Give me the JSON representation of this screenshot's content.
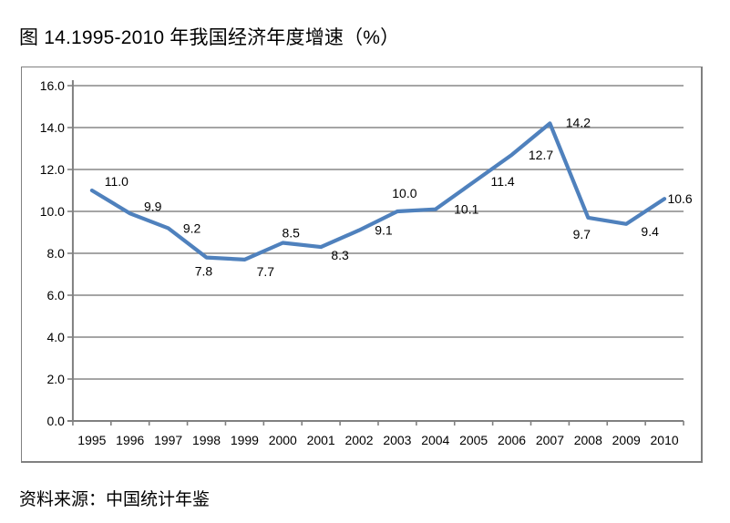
{
  "page": {
    "title": "图 14.1995-2010 年我国经济年度增速（%）",
    "source_note": "资料来源：中国统计年鉴"
  },
  "chart_data": {
    "type": "line",
    "title": "图 14.1995-2010 年我国经济年度增速（%）",
    "categories": [
      "1995",
      "1996",
      "1997",
      "1998",
      "1999",
      "2000",
      "2001",
      "2002",
      "2003",
      "2004",
      "2005",
      "2006",
      "2007",
      "2008",
      "2009",
      "2010"
    ],
    "values": [
      11.0,
      9.9,
      9.2,
      7.8,
      7.7,
      8.5,
      8.3,
      9.1,
      10.0,
      10.1,
      11.4,
      12.7,
      14.2,
      9.7,
      9.4,
      10.6
    ],
    "data_labels": [
      "11.0",
      "9.9",
      "9.2",
      "7.8",
      "7.7",
      "8.5",
      "8.3",
      "9.1",
      "10.0",
      "10.1",
      "11.4",
      "12.7",
      "14.2",
      "9.7",
      "9.4",
      "10.6"
    ],
    "ytick_labels": [
      "0.0",
      "2.0",
      "4.0",
      "6.0",
      "8.0",
      "10.0",
      "12.0",
      "14.0",
      "16.0"
    ],
    "ylim": [
      0,
      16
    ],
    "ytick_step": 2,
    "xlabel": "",
    "ylabel": "",
    "grid": true,
    "legend": "none",
    "line_color": "#4F81BD",
    "gridline_color": "#878787",
    "axis_color": "#808080",
    "text_color": "#000000",
    "source_note": "资料来源：中国统计年鉴"
  }
}
